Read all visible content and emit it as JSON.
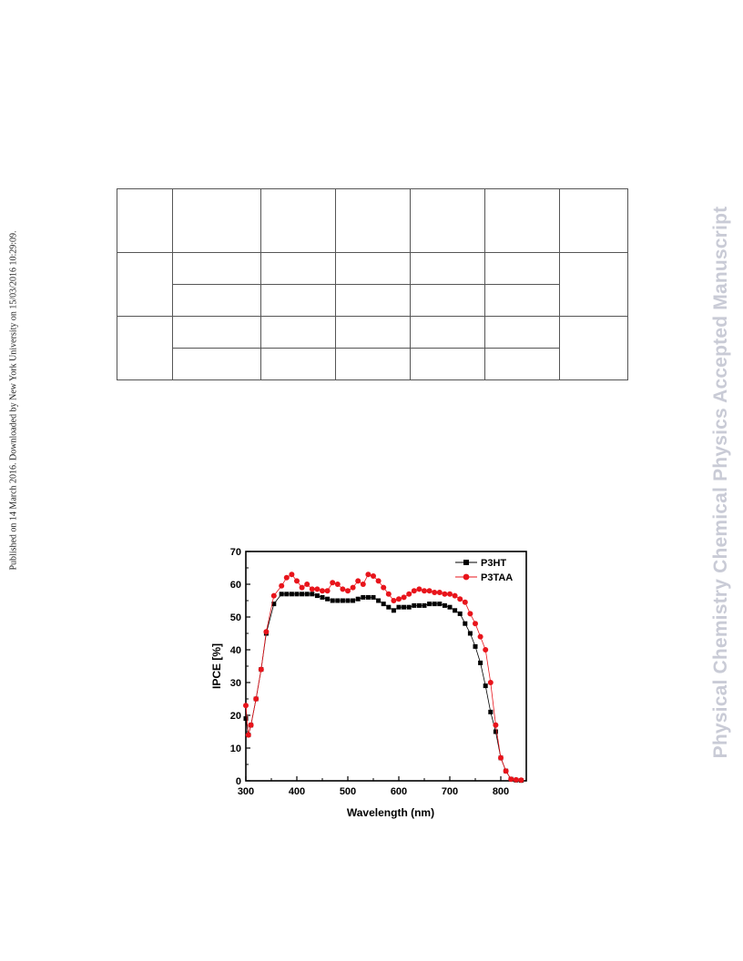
{
  "side_note": "Published on 14 March 2016. Downloaded by New York University on 15/03/2016 10:29:09.",
  "watermark": "Physical Chemistry Chemical Physics Accepted Manuscript",
  "colors": {
    "p3ht": "#000000",
    "p3taa": "#e8141b",
    "watermark": "#c9cbd6"
  },
  "chart_data": {
    "type": "line",
    "xlabel": "Wavelength (nm)",
    "ylabel": "IPCE [%]",
    "xlim": [
      300,
      850
    ],
    "ylim": [
      0,
      70
    ],
    "xticks": [
      300,
      400,
      500,
      600,
      700,
      800
    ],
    "yticks": [
      0,
      10,
      20,
      30,
      40,
      50,
      60,
      70
    ],
    "legend_position": "top-right",
    "grid": false,
    "series": [
      {
        "name": "P3HT",
        "marker": "square",
        "color": "#000000",
        "x": [
          300,
          305,
          310,
          320,
          330,
          340,
          355,
          370,
          380,
          390,
          400,
          410,
          420,
          430,
          440,
          450,
          460,
          470,
          480,
          490,
          500,
          510,
          520,
          530,
          540,
          550,
          560,
          570,
          580,
          590,
          600,
          610,
          620,
          630,
          640,
          650,
          660,
          670,
          680,
          690,
          700,
          710,
          720,
          730,
          740,
          750,
          760,
          770,
          780,
          790,
          800,
          810,
          820,
          830,
          840
        ],
        "y": [
          19,
          14,
          17,
          25,
          34,
          45,
          54,
          57,
          57,
          57,
          57,
          57,
          57,
          57,
          56.5,
          56,
          55.5,
          55,
          55,
          55,
          55,
          55,
          55.5,
          56,
          56,
          56,
          55,
          54,
          53,
          52,
          53,
          53,
          53,
          53.5,
          53.5,
          53.5,
          54,
          54,
          54,
          53.5,
          53,
          52,
          51,
          48,
          45,
          41,
          36,
          29,
          21,
          15,
          7,
          3,
          0.5,
          0.2,
          0.1
        ]
      },
      {
        "name": "P3TAA",
        "marker": "circle",
        "color": "#e8141b",
        "x": [
          300,
          305,
          310,
          320,
          330,
          340,
          355,
          370,
          380,
          390,
          400,
          410,
          420,
          430,
          440,
          450,
          460,
          470,
          480,
          490,
          500,
          510,
          520,
          530,
          540,
          550,
          560,
          570,
          580,
          590,
          600,
          610,
          620,
          630,
          640,
          650,
          660,
          670,
          680,
          690,
          700,
          710,
          720,
          730,
          740,
          750,
          760,
          770,
          780,
          790,
          800,
          810,
          820,
          830,
          840
        ],
        "y": [
          23,
          14,
          17,
          25,
          34,
          45.5,
          56.5,
          59.5,
          62,
          63,
          61,
          59,
          60,
          58.5,
          58.5,
          58,
          58,
          60.5,
          60,
          58.5,
          58,
          59,
          61,
          60,
          63,
          62.5,
          61,
          59,
          57,
          55,
          55.5,
          56,
          57,
          58,
          58.5,
          58,
          58,
          57.5,
          57.5,
          57,
          57,
          56.5,
          55.5,
          54.5,
          51,
          48,
          44,
          40,
          30,
          17,
          7,
          3,
          0.5,
          0.3,
          0.2
        ]
      }
    ]
  }
}
